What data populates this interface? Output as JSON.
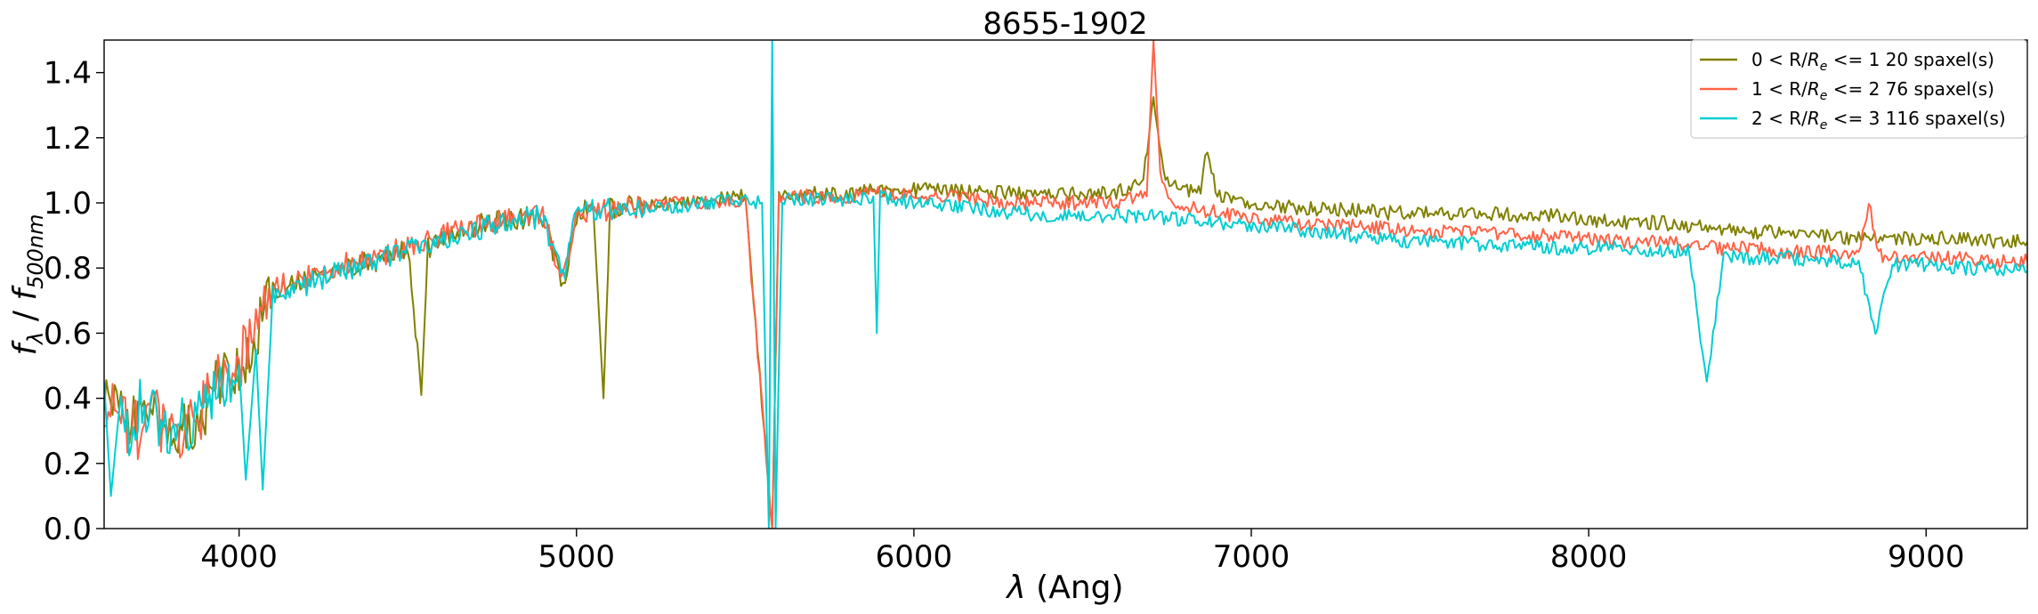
{
  "chart_data": {
    "type": "line",
    "title": "8655-1902",
    "xlabel": "λ (Ang)",
    "ylabel": "f_λ / f_500nm",
    "xlim": [
      3600,
      9300
    ],
    "ylim": [
      0.0,
      1.5
    ],
    "xticks": [
      "4000",
      "5000",
      "6000",
      "7000",
      "8000",
      "9000"
    ],
    "yticks": [
      "0.0",
      "0.2",
      "0.4",
      "0.6",
      "0.8",
      "1.0",
      "1.2",
      "1.4"
    ],
    "legend_position": "top-right",
    "grid": false,
    "series": [
      {
        "name": "0 < R/Re <= 1 20 spaxel(s)",
        "legend_prefix": "0 < R/",
        "legend_suffix": " <= 1 20 spaxel(s)",
        "color": "#808000",
        "x": [
          3600,
          3650,
          3700,
          3750,
          3800,
          3850,
          3900,
          3950,
          4000,
          4050,
          4100,
          4150,
          4200,
          4300,
          4400,
          4500,
          4540,
          4560,
          4600,
          4700,
          4800,
          4900,
          4960,
          5000,
          5050,
          5080,
          5100,
          5150,
          5200,
          5300,
          5400,
          5500,
          5580,
          5600,
          5700,
          5800,
          5900,
          6000,
          6100,
          6200,
          6300,
          6400,
          6500,
          6600,
          6680,
          6710,
          6740,
          6780,
          6850,
          6870,
          6900,
          7000,
          7100,
          7200,
          7300,
          7400,
          7500,
          7600,
          7700,
          7800,
          7900,
          8000,
          8100,
          8200,
          8300,
          8400,
          8500,
          8600,
          8700,
          8800,
          8900,
          9000,
          9100,
          9200,
          9300
        ],
        "y": [
          0.42,
          0.36,
          0.33,
          0.35,
          0.29,
          0.3,
          0.37,
          0.46,
          0.5,
          0.6,
          0.73,
          0.74,
          0.76,
          0.8,
          0.82,
          0.86,
          0.41,
          0.86,
          0.9,
          0.93,
          0.95,
          0.96,
          0.74,
          0.97,
          0.98,
          0.4,
          0.98,
          0.99,
          0.99,
          1.0,
          1.01,
          1.02,
          0.0,
          1.02,
          1.03,
          1.03,
          1.04,
          1.04,
          1.04,
          1.03,
          1.03,
          1.03,
          1.03,
          1.03,
          1.07,
          1.32,
          1.09,
          1.04,
          1.04,
          1.17,
          1.02,
          1.0,
          0.99,
          0.98,
          0.98,
          0.97,
          0.97,
          0.97,
          0.97,
          0.96,
          0.96,
          0.95,
          0.94,
          0.94,
          0.93,
          0.92,
          0.91,
          0.91,
          0.9,
          0.89,
          0.89,
          0.89,
          0.89,
          0.88,
          0.88
        ]
      },
      {
        "name": "1 < R/Re <= 2 76 spaxel(s)",
        "legend_prefix": "1 < R/",
        "legend_suffix": " <= 2 76 spaxel(s)",
        "color": "#ff6347",
        "x": [
          3600,
          3650,
          3700,
          3750,
          3800,
          3850,
          3900,
          3950,
          4000,
          4050,
          4100,
          4150,
          4200,
          4300,
          4400,
          4500,
          4600,
          4700,
          4800,
          4900,
          4960,
          5000,
          5100,
          5200,
          5300,
          5400,
          5500,
          5580,
          5600,
          5700,
          5800,
          5900,
          6000,
          6100,
          6200,
          6300,
          6400,
          6500,
          6600,
          6690,
          6710,
          6730,
          6760,
          6800,
          6900,
          7000,
          7100,
          7200,
          7300,
          7400,
          7500,
          7600,
          7700,
          7800,
          7900,
          8000,
          8100,
          8200,
          8300,
          8400,
          8500,
          8600,
          8700,
          8800,
          8830,
          8860,
          8900,
          9000,
          9100,
          9200,
          9300
        ],
        "y": [
          0.4,
          0.33,
          0.3,
          0.34,
          0.3,
          0.31,
          0.38,
          0.47,
          0.51,
          0.62,
          0.75,
          0.75,
          0.77,
          0.81,
          0.83,
          0.87,
          0.9,
          0.93,
          0.95,
          0.96,
          0.76,
          0.97,
          0.98,
          0.99,
          1.0,
          1.0,
          1.01,
          0.0,
          1.02,
          1.02,
          1.02,
          1.03,
          1.02,
          1.02,
          1.01,
          1.0,
          1.0,
          1.0,
          1.0,
          1.02,
          1.5,
          1.1,
          1.0,
          0.99,
          0.97,
          0.95,
          0.94,
          0.93,
          0.93,
          0.92,
          0.91,
          0.91,
          0.91,
          0.9,
          0.9,
          0.89,
          0.88,
          0.88,
          0.87,
          0.86,
          0.86,
          0.85,
          0.85,
          0.84,
          1.0,
          0.84,
          0.83,
          0.83,
          0.83,
          0.82,
          0.82
        ]
      },
      {
        "name": "2 < R/Re <= 3 116 spaxel(s)",
        "legend_prefix": "2 < R/",
        "legend_suffix": " <= 3 116 spaxel(s)",
        "color": "#00ced1",
        "x": [
          3600,
          3620,
          3650,
          3680,
          3700,
          3750,
          3800,
          3850,
          3900,
          3950,
          4000,
          4020,
          4050,
          4070,
          4100,
          4150,
          4200,
          4300,
          4400,
          4500,
          4600,
          4700,
          4800,
          4900,
          4960,
          5000,
          5100,
          5200,
          5300,
          5400,
          5500,
          5550,
          5570,
          5580,
          5590,
          5610,
          5700,
          5800,
          5880,
          5890,
          5900,
          6000,
          6100,
          6200,
          6300,
          6400,
          6500,
          6600,
          6700,
          6800,
          6900,
          7000,
          7100,
          7200,
          7300,
          7400,
          7500,
          7600,
          7700,
          7800,
          7900,
          8000,
          8100,
          8200,
          8300,
          8350,
          8400,
          8500,
          8600,
          8700,
          8800,
          8850,
          8900,
          9000,
          9100,
          9200,
          9300
        ],
        "y": [
          0.45,
          0.1,
          0.42,
          0.2,
          0.38,
          0.34,
          0.3,
          0.32,
          0.38,
          0.45,
          0.5,
          0.15,
          0.55,
          0.12,
          0.72,
          0.74,
          0.75,
          0.79,
          0.82,
          0.86,
          0.89,
          0.92,
          0.94,
          0.96,
          0.77,
          0.97,
          0.98,
          0.98,
          0.99,
          1.0,
          1.01,
          1.0,
          0.0,
          1.5,
          0.0,
          1.01,
          1.01,
          1.01,
          1.02,
          0.6,
          1.02,
          1.0,
          0.99,
          0.98,
          0.97,
          0.96,
          0.96,
          0.96,
          0.96,
          0.95,
          0.94,
          0.93,
          0.92,
          0.91,
          0.9,
          0.89,
          0.88,
          0.88,
          0.87,
          0.87,
          0.86,
          0.86,
          0.86,
          0.85,
          0.85,
          0.44,
          0.84,
          0.83,
          0.83,
          0.82,
          0.82,
          0.6,
          0.81,
          0.81,
          0.8,
          0.8,
          0.79
        ]
      }
    ]
  }
}
